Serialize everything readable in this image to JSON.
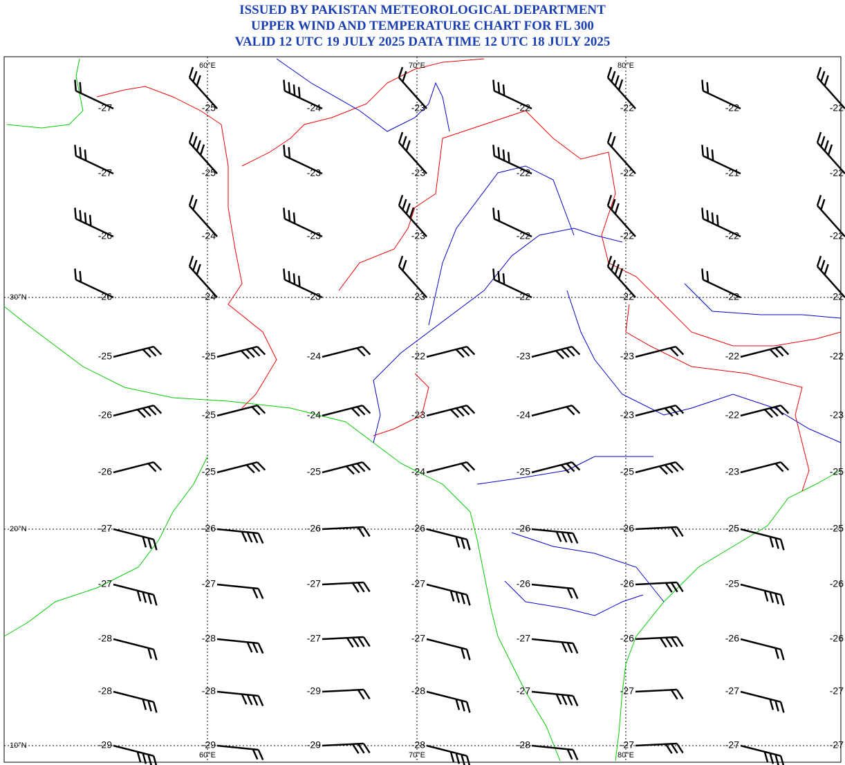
{
  "header": {
    "lines": [
      "ISSUED BY PAKISTAN METEOROLOGICAL DEPARTMENT",
      "UPPER WIND AND TEMPERATURE CHART FOR FL 300",
      "VALID 12 UTC 19 JULY 2025 DATA TIME 12 UTC 18 JULY 2025"
    ]
  },
  "map": {
    "longitude_labels": [
      "60°E",
      "70°E",
      "80°E"
    ],
    "latitude_labels": [
      "30°N",
      "20°N",
      "10°N"
    ],
    "temperatures": [
      [
        -27,
        -25,
        -24,
        -23,
        -22,
        -22,
        -22,
        -22
      ],
      [
        -27,
        -25,
        -23,
        -23,
        -22,
        -22,
        -21,
        -22
      ],
      [
        -26,
        -24,
        -23,
        -23,
        -22,
        -22,
        -22,
        -22
      ],
      [
        -26,
        -24,
        -23,
        -23,
        -22,
        -22,
        -22,
        -22
      ],
      [
        -25,
        -25,
        -24,
        -22,
        -23,
        -23,
        -22,
        -22
      ],
      [
        -26,
        -25,
        -24,
        -23,
        -24,
        -23,
        -22,
        -23
      ],
      [
        -26,
        -25,
        -25,
        -24,
        -25,
        -25,
        -23,
        -25
      ],
      [
        -27,
        -26,
        -26,
        -26,
        -26,
        -26,
        -25,
        -25
      ],
      [
        -27,
        -27,
        -27,
        -27,
        -26,
        -26,
        -25,
        -26
      ],
      [
        -28,
        -28,
        -27,
        -27,
        -27,
        -26,
        -26,
        -26
      ],
      [
        -28,
        -28,
        -29,
        -28,
        -27,
        -27,
        -27,
        -27
      ],
      [
        -29,
        -29,
        -29,
        -28,
        -28,
        -27,
        -27,
        -27
      ]
    ]
  }
}
